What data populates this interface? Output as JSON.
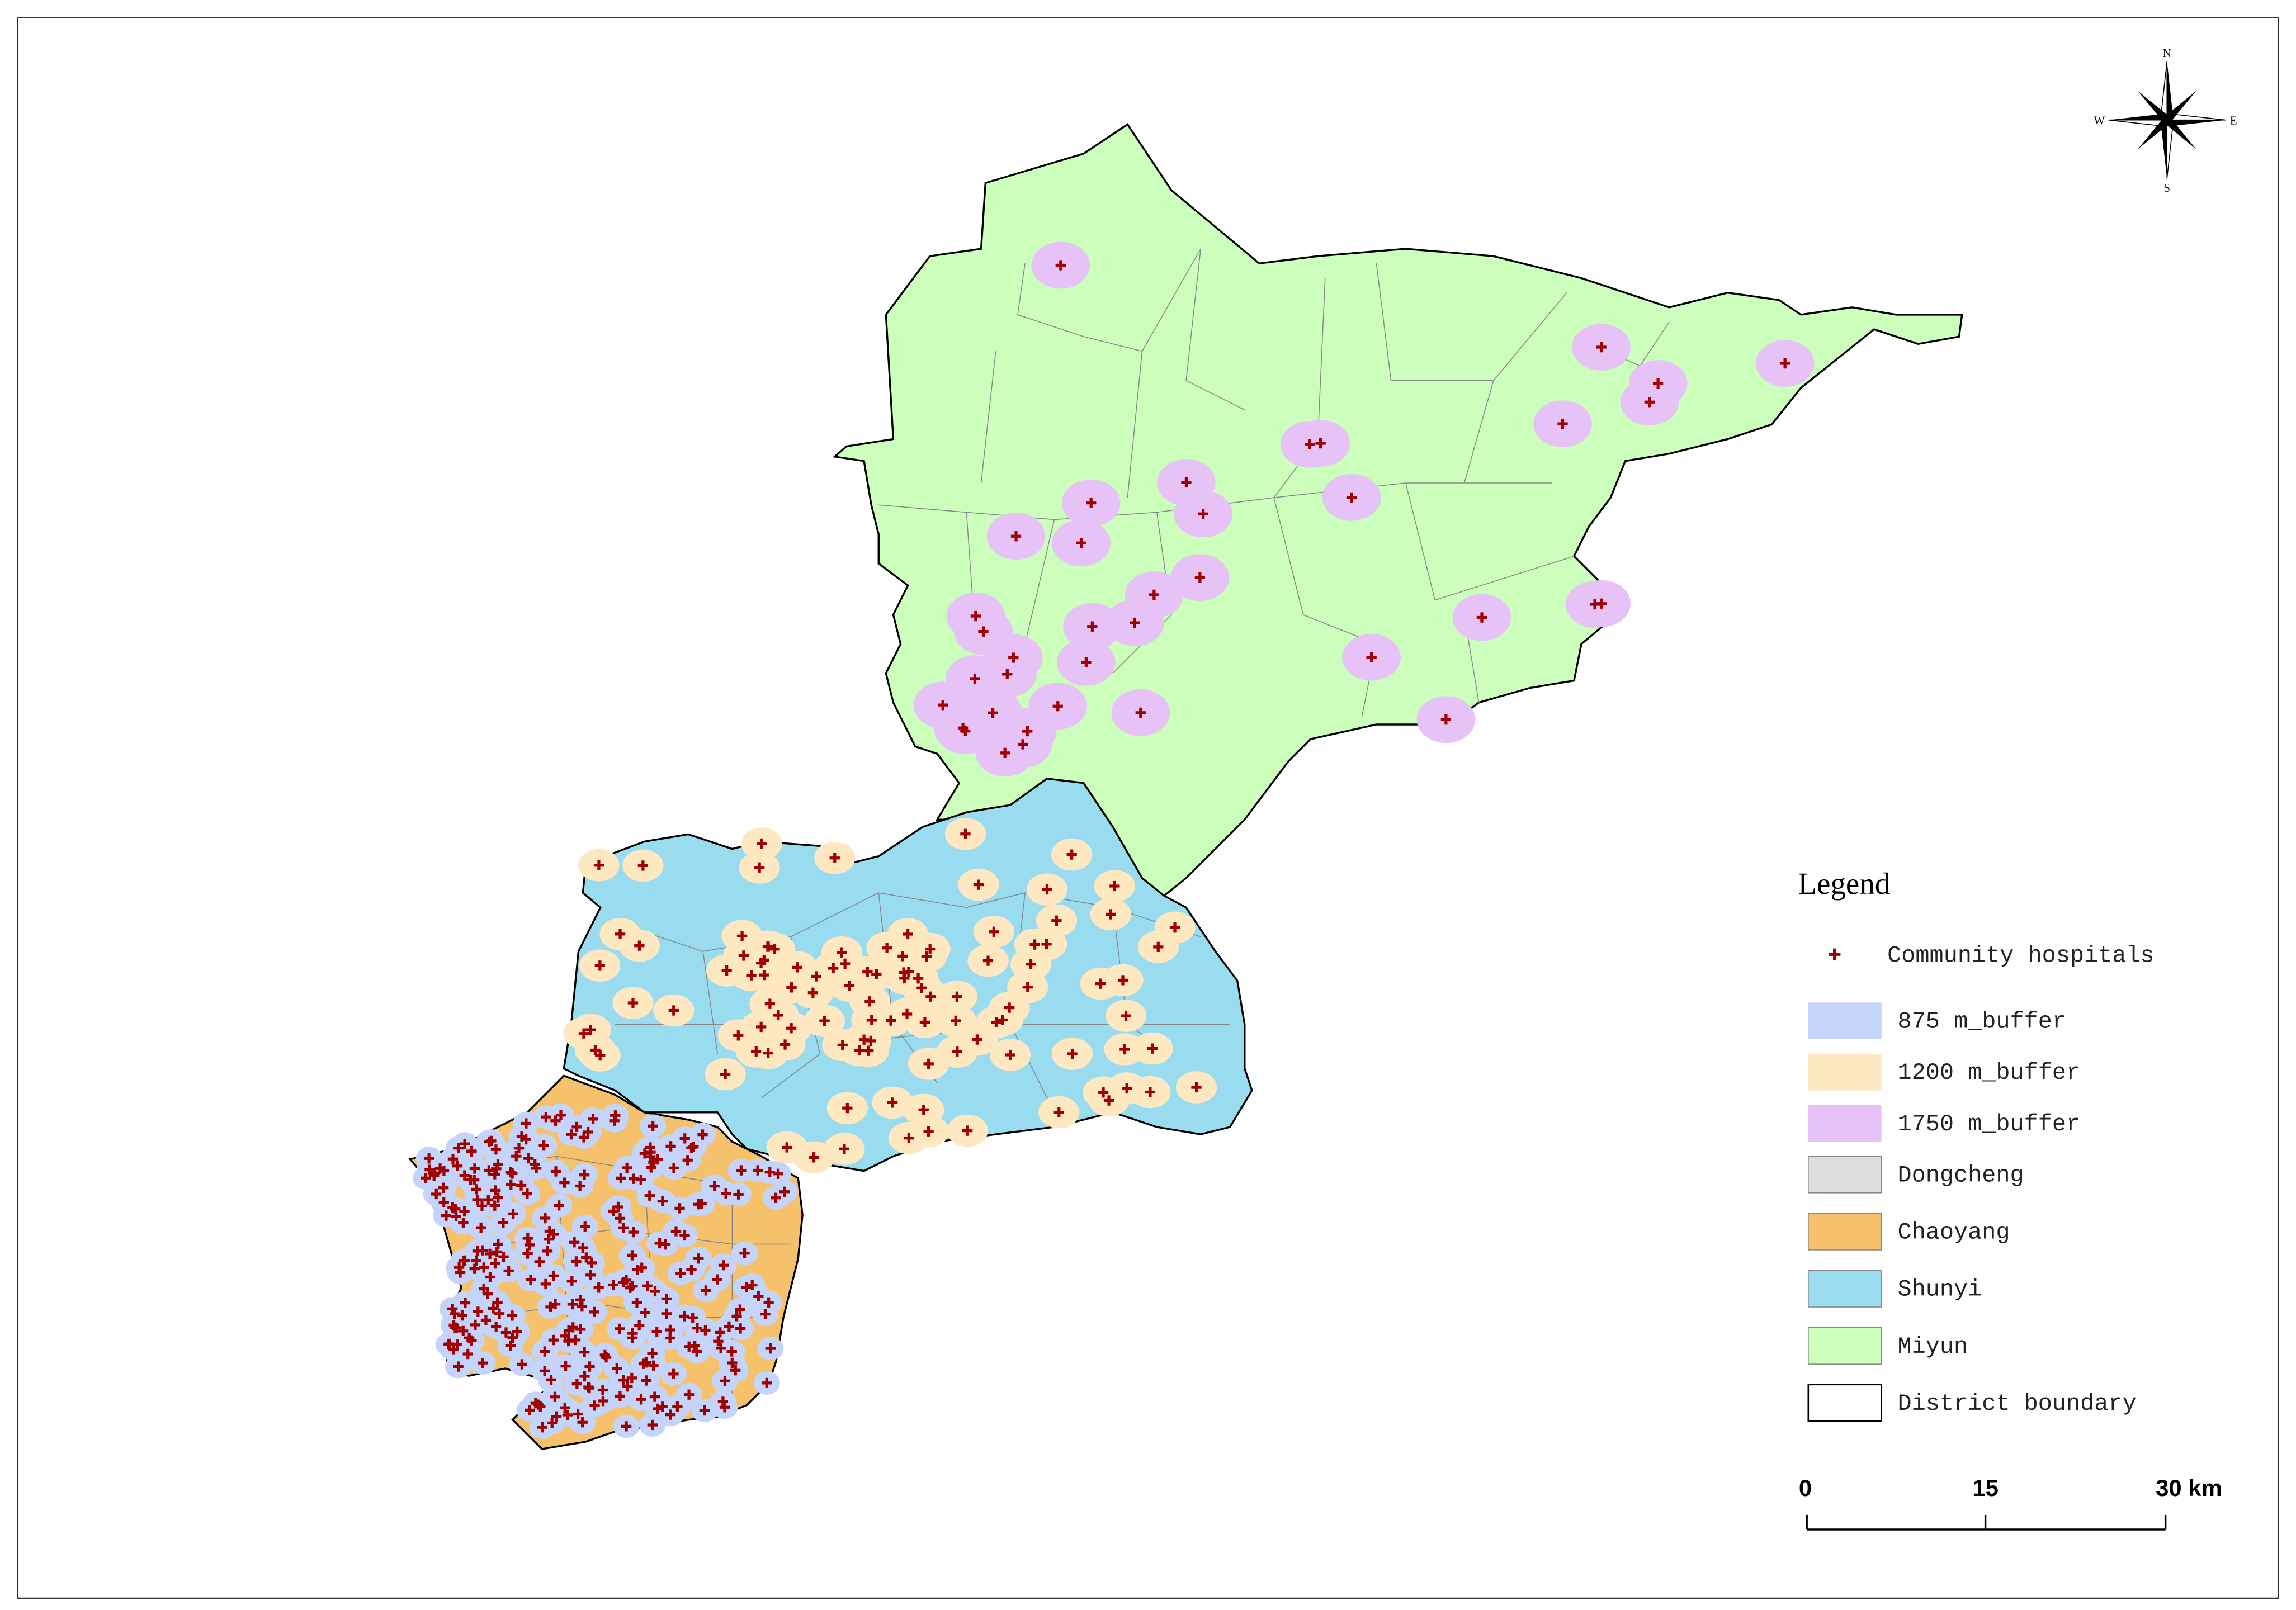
{
  "legend": {
    "title": "Legend",
    "items": [
      "Community hospitals",
      "875 m_buffer",
      "1200 m_buffer",
      "1750 m_buffer",
      "Dongcheng",
      "Chaoyang",
      "Shunyi",
      "Miyun",
      "District boundary"
    ]
  },
  "compass": {
    "north": "N",
    "south": "S",
    "east": "E",
    "west": "W"
  },
  "scale_bar": {
    "labels": [
      "0",
      "15",
      "30 km"
    ]
  }
}
